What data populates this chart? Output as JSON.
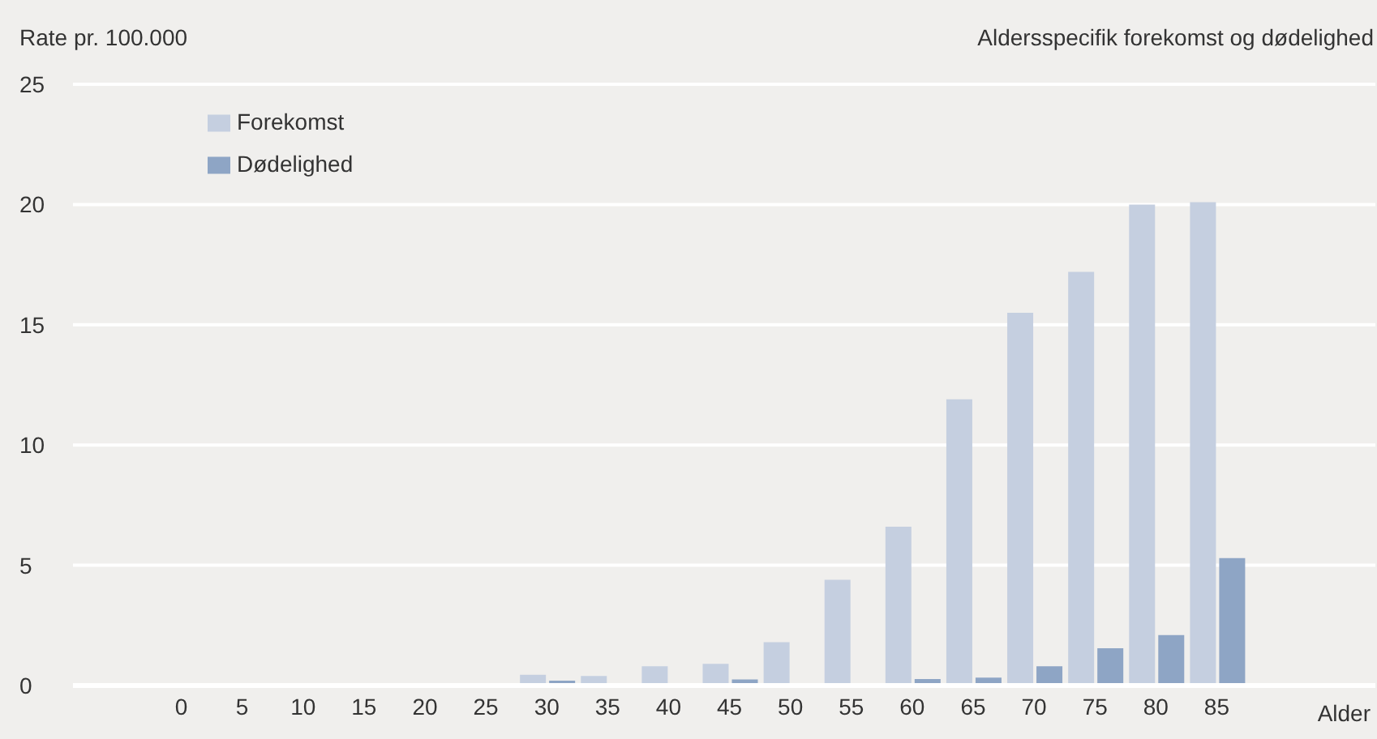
{
  "chart_data": {
    "type": "bar",
    "title": "Aldersspecifik forekomst og dødelighed",
    "ylabel": "Rate pr. 100.000",
    "xlabel": "Alder",
    "categories": [
      "0",
      "5",
      "10",
      "15",
      "20",
      "25",
      "30",
      "35",
      "40",
      "45",
      "50",
      "55",
      "60",
      "65",
      "70",
      "75",
      "80",
      "85"
    ],
    "series": [
      {
        "name": "Forekomst",
        "color": "#c5cfe0",
        "values": [
          0,
          0,
          0,
          0,
          0,
          0,
          0.45,
          0.4,
          0.8,
          0.9,
          1.8,
          4.4,
          6.6,
          11.9,
          15.5,
          17.2,
          20.0,
          20.1
        ]
      },
      {
        "name": "Dødelighed",
        "color": "#8ea5c5",
        "values": [
          0,
          0,
          0,
          0,
          0,
          0,
          0.2,
          0,
          0,
          0.25,
          0,
          0,
          0.27,
          0.33,
          0.8,
          1.55,
          2.1,
          5.3
        ]
      }
    ],
    "ylim": [
      0,
      25
    ],
    "yticks": [
      0,
      5,
      10,
      15,
      20,
      25
    ],
    "grid": "y",
    "legend": "top left"
  }
}
